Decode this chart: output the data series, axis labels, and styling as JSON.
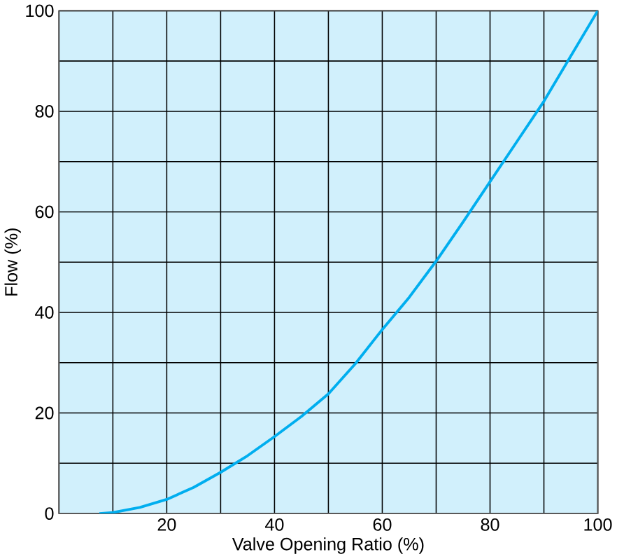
{
  "chart_data": {
    "type": "line",
    "xlabel": "Valve Opening Ratio (%)",
    "ylabel": "Flow (%)",
    "x": [
      7.5,
      10,
      15,
      20,
      25,
      30,
      35,
      40,
      45,
      50,
      55,
      60,
      65,
      70,
      75,
      80,
      85,
      90,
      95,
      100
    ],
    "series": [
      {
        "color": "#00aeef",
        "values": [
          0,
          0.2,
          1.2,
          2.8,
          5.2,
          8.2,
          11.5,
          15.3,
          19.3,
          23.8,
          29.8,
          36.6,
          43,
          50.2,
          58,
          66,
          74,
          82,
          91,
          100
        ]
      }
    ],
    "xlim": [
      0,
      100
    ],
    "ylim": [
      0,
      100
    ],
    "xticks": [
      {
        "value": 0,
        "label": null
      },
      {
        "value": 10,
        "label": null
      },
      20,
      {
        "value": 30,
        "label": null
      },
      40,
      {
        "value": 50,
        "label": null
      },
      60,
      {
        "value": 70,
        "label": null
      },
      80,
      {
        "value": 90,
        "label": null
      },
      100
    ],
    "yticks": [
      0,
      {
        "value": 10,
        "label": null
      },
      20,
      {
        "value": 30,
        "label": null
      },
      40,
      {
        "value": 50,
        "label": null
      },
      60,
      {
        "value": 70,
        "label": null
      },
      80,
      {
        "value": 90,
        "label": null
      },
      100
    ],
    "grid": true,
    "marker": "none",
    "line_style": "solid"
  }
}
